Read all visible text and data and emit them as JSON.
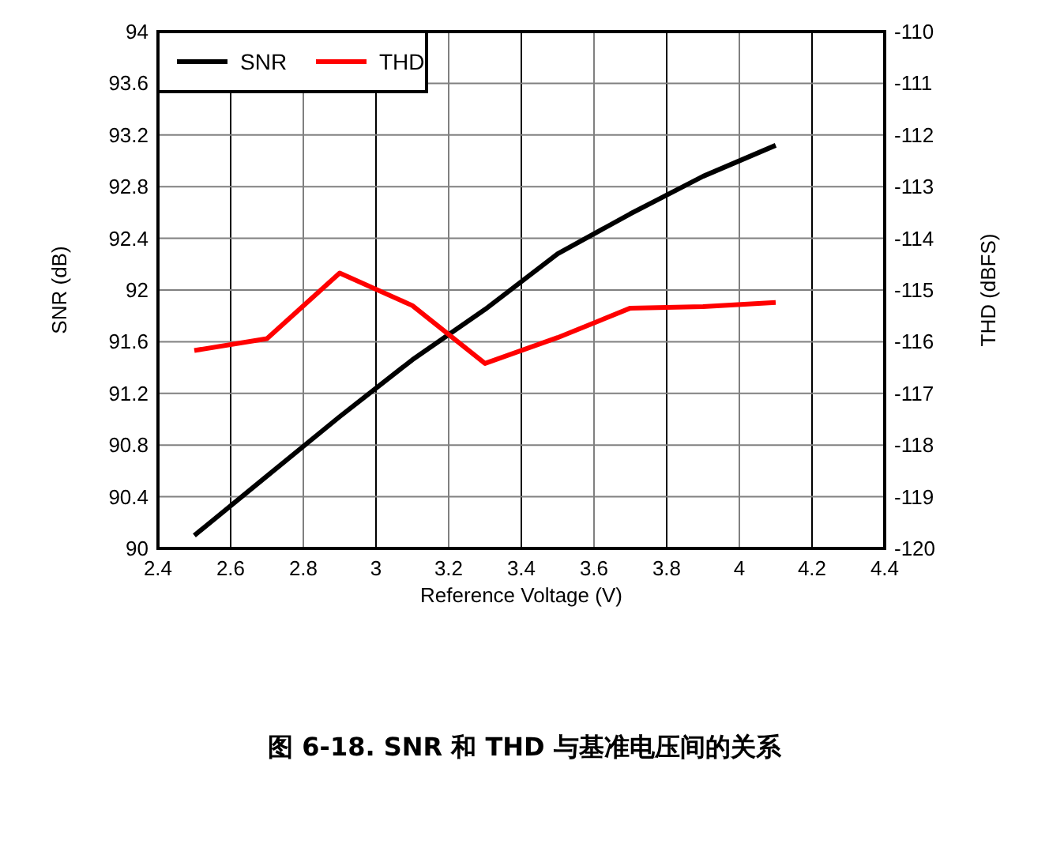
{
  "chart_data": {
    "type": "line",
    "title": "图 6-18. SNR 和 THD 与基准电压间的关系",
    "xlabel": "Reference Voltage (V)",
    "ylabel": "SNR (dB)",
    "y2label": "THD (dBFS)",
    "x": [
      2.5,
      2.7,
      2.9,
      3.1,
      3.3,
      3.5,
      3.7,
      3.9,
      4.1
    ],
    "series": [
      {
        "name": "SNR",
        "color": "#000000",
        "values": [
          90.1,
          90.56,
          91.02,
          91.46,
          91.85,
          92.28,
          92.59,
          92.88,
          93.12
        ]
      },
      {
        "name": "THD",
        "color": "#ff0000",
        "axis": "y2",
        "values": [
          -116.17,
          -115.94,
          -114.67,
          -115.3,
          -116.42,
          -115.92,
          -115.35,
          -115.32,
          -115.24
        ]
      }
    ],
    "xlim": [
      2.4,
      4.4
    ],
    "xticks": [
      2.4,
      2.6,
      2.8,
      3,
      3.2,
      3.4,
      3.6,
      3.8,
      4,
      4.2,
      4.4
    ],
    "ylim": [
      90,
      94
    ],
    "yticks": [
      90,
      90.4,
      90.8,
      91.2,
      91.6,
      92,
      92.4,
      92.8,
      93.2,
      93.6,
      94
    ],
    "y2lim": [
      -120,
      -110
    ],
    "y2ticks": [
      -120,
      -119,
      -118,
      -117,
      -116,
      -115,
      -114,
      -113,
      -112,
      -111,
      -110
    ],
    "grid": true,
    "legend": "top left",
    "line_style": "solid",
    "marker": "none"
  }
}
